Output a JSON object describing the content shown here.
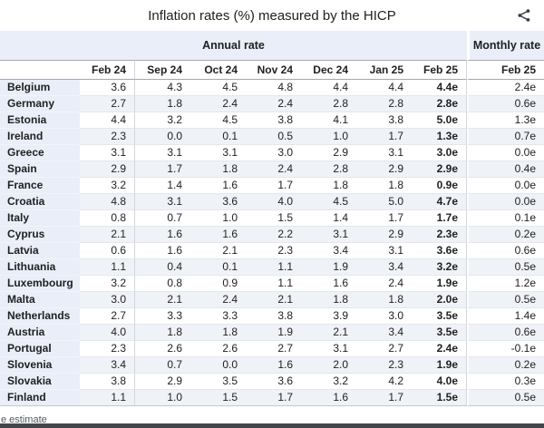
{
  "header": {
    "title": "Inflation rates (%) measured by the HICP"
  },
  "table": {
    "group_headers": {
      "annual": "Annual rate",
      "monthly": "Monthly rate"
    },
    "columns": [
      "Feb 24",
      "Sep 24",
      "Oct 24",
      "Nov 24",
      "Dec 24",
      "Jan 25",
      "Feb 25"
    ],
    "monthly_column": "Feb 25",
    "rows": [
      {
        "country": "Belgium",
        "values": [
          "3.6",
          "4.3",
          "4.5",
          "4.8",
          "4.4",
          "4.4",
          "4.4e"
        ],
        "monthly": "2.4e"
      },
      {
        "country": "Germany",
        "values": [
          "2.7",
          "1.8",
          "2.4",
          "2.4",
          "2.8",
          "2.8",
          "2.8e"
        ],
        "monthly": "0.6e"
      },
      {
        "country": "Estonia",
        "values": [
          "4.4",
          "3.2",
          "4.5",
          "3.8",
          "4.1",
          "3.8",
          "5.0e"
        ],
        "monthly": "1.3e"
      },
      {
        "country": "Ireland",
        "values": [
          "2.3",
          "0.0",
          "0.1",
          "0.5",
          "1.0",
          "1.7",
          "1.3e"
        ],
        "monthly": "0.7e"
      },
      {
        "country": "Greece",
        "values": [
          "3.1",
          "3.1",
          "3.1",
          "3.0",
          "2.9",
          "3.1",
          "3.0e"
        ],
        "monthly": "0.0e"
      },
      {
        "country": "Spain",
        "values": [
          "2.9",
          "1.7",
          "1.8",
          "2.4",
          "2.8",
          "2.9",
          "2.9e"
        ],
        "monthly": "0.4e"
      },
      {
        "country": "France",
        "values": [
          "3.2",
          "1.4",
          "1.6",
          "1.7",
          "1.8",
          "1.8",
          "0.9e"
        ],
        "monthly": "0.0e"
      },
      {
        "country": "Croatia",
        "values": [
          "4.8",
          "3.1",
          "3.6",
          "4.0",
          "4.5",
          "5.0",
          "4.7e"
        ],
        "monthly": "0.0e"
      },
      {
        "country": "Italy",
        "values": [
          "0.8",
          "0.7",
          "1.0",
          "1.5",
          "1.4",
          "1.7",
          "1.7e"
        ],
        "monthly": "0.1e"
      },
      {
        "country": "Cyprus",
        "values": [
          "2.1",
          "1.6",
          "1.6",
          "2.2",
          "3.1",
          "2.9",
          "2.3e"
        ],
        "monthly": "0.2e"
      },
      {
        "country": "Latvia",
        "values": [
          "0.6",
          "1.6",
          "2.1",
          "2.3",
          "3.4",
          "3.1",
          "3.6e"
        ],
        "monthly": "0.6e"
      },
      {
        "country": "Lithuania",
        "values": [
          "1.1",
          "0.4",
          "0.1",
          "1.1",
          "1.9",
          "3.4",
          "3.2e"
        ],
        "monthly": "0.5e"
      },
      {
        "country": "Luxembourg",
        "values": [
          "3.2",
          "0.8",
          "0.9",
          "1.1",
          "1.6",
          "2.4",
          "1.9e"
        ],
        "monthly": "1.2e"
      },
      {
        "country": "Malta",
        "values": [
          "3.0",
          "2.1",
          "2.4",
          "2.1",
          "1.8",
          "1.8",
          "2.0e"
        ],
        "monthly": "0.5e"
      },
      {
        "country": "Netherlands",
        "values": [
          "2.7",
          "3.3",
          "3.3",
          "3.8",
          "3.9",
          "3.0",
          "3.5e"
        ],
        "monthly": "1.4e"
      },
      {
        "country": "Austria",
        "values": [
          "4.0",
          "1.8",
          "1.8",
          "1.9",
          "2.1",
          "3.4",
          "3.5e"
        ],
        "monthly": "0.6e"
      },
      {
        "country": "Portugal",
        "values": [
          "2.3",
          "2.6",
          "2.6",
          "2.7",
          "3.1",
          "2.7",
          "2.4e"
        ],
        "monthly": "-0.1e"
      },
      {
        "country": "Slovenia",
        "values": [
          "3.4",
          "0.7",
          "0.0",
          "1.6",
          "2.0",
          "2.3",
          "1.9e"
        ],
        "monthly": "0.2e"
      },
      {
        "country": "Slovakia",
        "values": [
          "3.8",
          "2.9",
          "3.5",
          "3.6",
          "3.2",
          "4.2",
          "4.0e"
        ],
        "monthly": "0.3e"
      },
      {
        "country": "Finland",
        "values": [
          "1.1",
          "1.0",
          "1.5",
          "1.7",
          "1.6",
          "1.7",
          "1.5e"
        ],
        "monthly": "0.5e"
      }
    ]
  },
  "footnote": "e estimate",
  "icons": {
    "share": "share-icon"
  },
  "colors": {
    "band_blue": "#e9eef8",
    "stripe": "#eff2f7",
    "header_border": "#a2a9b1",
    "row_border": "#e4e7ec",
    "text": "#202122",
    "muted": "#54595d",
    "bottom_bar": "#43464b"
  },
  "chart_data": {
    "type": "table",
    "title": "Inflation rates (%) measured by the HICP",
    "column_groups": [
      {
        "label": "Annual rate",
        "span": 7
      },
      {
        "label": "Monthly rate",
        "span": 1
      }
    ],
    "columns": [
      "Feb 24",
      "Sep 24",
      "Oct 24",
      "Nov 24",
      "Dec 24",
      "Jan 25",
      "Feb 25",
      "Feb 25"
    ],
    "rows": [
      [
        "Belgium",
        "3.6",
        "4.3",
        "4.5",
        "4.8",
        "4.4",
        "4.4",
        "4.4e",
        "2.4e"
      ],
      [
        "Germany",
        "2.7",
        "1.8",
        "2.4",
        "2.4",
        "2.8",
        "2.8",
        "2.8e",
        "0.6e"
      ],
      [
        "Estonia",
        "4.4",
        "3.2",
        "4.5",
        "3.8",
        "4.1",
        "3.8",
        "5.0e",
        "1.3e"
      ],
      [
        "Ireland",
        "2.3",
        "0.0",
        "0.1",
        "0.5",
        "1.0",
        "1.7",
        "1.3e",
        "0.7e"
      ],
      [
        "Greece",
        "3.1",
        "3.1",
        "3.1",
        "3.0",
        "2.9",
        "3.1",
        "3.0e",
        "0.0e"
      ],
      [
        "Spain",
        "2.9",
        "1.7",
        "1.8",
        "2.4",
        "2.8",
        "2.9",
        "2.9e",
        "0.4e"
      ],
      [
        "France",
        "3.2",
        "1.4",
        "1.6",
        "1.7",
        "1.8",
        "1.8",
        "0.9e",
        "0.0e"
      ],
      [
        "Croatia",
        "4.8",
        "3.1",
        "3.6",
        "4.0",
        "4.5",
        "5.0",
        "4.7e",
        "0.0e"
      ],
      [
        "Italy",
        "0.8",
        "0.7",
        "1.0",
        "1.5",
        "1.4",
        "1.7",
        "1.7e",
        "0.1e"
      ],
      [
        "Cyprus",
        "2.1",
        "1.6",
        "1.6",
        "2.2",
        "3.1",
        "2.9",
        "2.3e",
        "0.2e"
      ],
      [
        "Latvia",
        "0.6",
        "1.6",
        "2.1",
        "2.3",
        "3.4",
        "3.1",
        "3.6e",
        "0.6e"
      ],
      [
        "Lithuania",
        "1.1",
        "0.4",
        "0.1",
        "1.1",
        "1.9",
        "3.4",
        "3.2e",
        "0.5e"
      ],
      [
        "Luxembourg",
        "3.2",
        "0.8",
        "0.9",
        "1.1",
        "1.6",
        "2.4",
        "1.9e",
        "1.2e"
      ],
      [
        "Malta",
        "3.0",
        "2.1",
        "2.4",
        "2.1",
        "1.8",
        "1.8",
        "2.0e",
        "0.5e"
      ],
      [
        "Netherlands",
        "2.7",
        "3.3",
        "3.3",
        "3.8",
        "3.9",
        "3.0",
        "3.5e",
        "1.4e"
      ],
      [
        "Austria",
        "4.0",
        "1.8",
        "1.8",
        "1.9",
        "2.1",
        "3.4",
        "3.5e",
        "0.6e"
      ],
      [
        "Portugal",
        "2.3",
        "2.6",
        "2.6",
        "2.7",
        "3.1",
        "2.7",
        "2.4e",
        "-0.1e"
      ],
      [
        "Slovenia",
        "3.4",
        "0.7",
        "0.0",
        "1.6",
        "2.0",
        "2.3",
        "1.9e",
        "0.2e"
      ],
      [
        "Slovakia",
        "3.8",
        "2.9",
        "3.5",
        "3.6",
        "3.2",
        "4.2",
        "4.0e",
        "0.3e"
      ],
      [
        "Finland",
        "1.1",
        "1.0",
        "1.5",
        "1.7",
        "1.6",
        "1.7",
        "1.5e",
        "0.5e"
      ]
    ],
    "footnote": "e estimate",
    "layout": {
      "row_striping": true,
      "bold_columns": [
        "Feb 25 annual"
      ],
      "estimate_marker": "e"
    }
  }
}
